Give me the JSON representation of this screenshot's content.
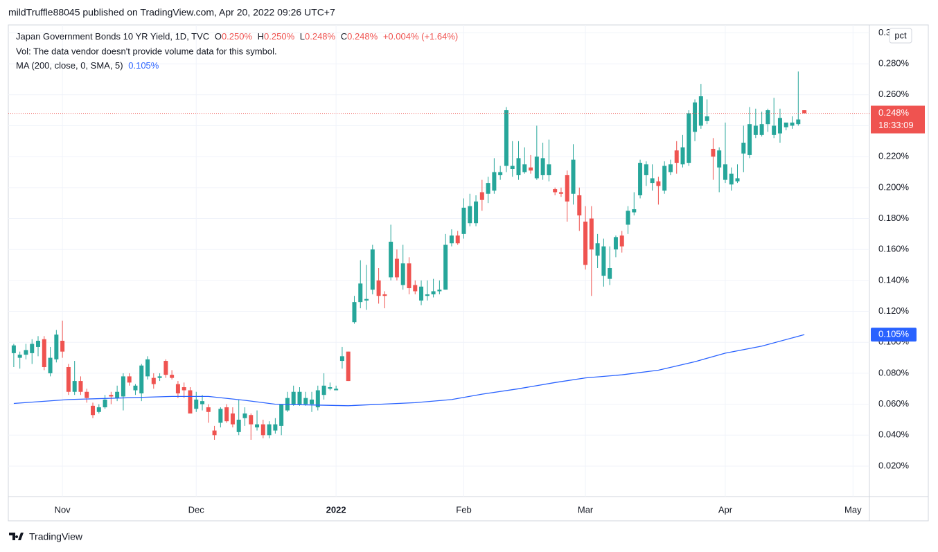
{
  "header": "mildTruffle88045 published on TradingView.com, Apr 20, 2022 09:26 UTC+7",
  "footer": "TradingView",
  "chart_data": {
    "type": "candlestick",
    "legend": {
      "symbol": "Japan Government Bonds 10 YR Yield, 1D, TVC",
      "o_label": "O",
      "o_value": "0.250%",
      "h_label": "H",
      "h_value": "0.250%",
      "l_label": "L",
      "l_value": "0.248%",
      "c_label": "C",
      "c_value": "0.248%",
      "change": "+0.004% (+1.64%)",
      "volume_note": "Vol: The data vendor doesn't provide volume data for this symbol."
    },
    "candles": {
      "up_color": "#26a69a",
      "down_color": "#ef5350",
      "open": [
        0.093,
        0.09,
        0.092,
        0.093,
        0.097,
        0.102,
        0.08,
        0.089,
        0.101,
        0.084,
        0.068,
        0.075,
        0.068,
        0.059,
        0.055,
        0.058,
        0.066,
        0.064,
        0.065,
        0.078,
        0.069,
        0.067,
        0.078,
        0.077,
        0.077,
        0.088,
        0.079,
        0.073,
        0.071,
        0.069,
        0.057,
        0.06,
        0.058,
        0.043,
        0.048,
        0.058,
        0.054,
        0.042,
        0.051,
        0.053,
        0.045,
        0.047,
        0.04,
        0.043,
        0.046,
        0.056,
        0.06,
        0.06,
        0.06,
        0.06,
        0.058,
        0.066,
        0.07,
        0.069,
        0.088,
        0.094,
        0.113,
        0.126,
        0.127,
        0.134,
        0.14,
        0.131,
        0.142,
        0.154,
        0.137,
        0.151,
        0.137,
        0.127,
        0.13,
        0.131,
        0.133,
        0.134,
        0.164,
        0.169,
        0.17,
        0.177,
        0.177,
        0.197,
        0.196,
        0.198,
        0.208,
        0.214,
        0.212,
        0.208,
        0.21,
        0.213,
        0.206,
        0.208,
        0.208,
        0.199,
        0.197,
        0.208,
        0.196,
        0.195,
        0.178,
        0.18,
        0.156,
        0.143,
        0.141,
        0.16,
        0.169,
        0.176,
        0.184,
        0.195,
        0.208,
        0.203,
        0.204,
        0.198,
        0.21,
        0.224,
        0.215,
        0.216,
        0.236,
        0.24,
        0.243,
        0.225,
        0.213,
        0.205,
        0.202,
        0.204,
        0.222,
        0.221,
        0.234,
        0.234,
        0.241,
        0.234,
        0.235,
        0.239,
        0.24,
        0.241,
        0.25
      ],
      "high": [
        0.099,
        0.094,
        0.099,
        0.102,
        0.104,
        0.104,
        0.097,
        0.108,
        0.114,
        0.086,
        0.088,
        0.078,
        0.07,
        0.061,
        0.06,
        0.066,
        0.068,
        0.072,
        0.08,
        0.08,
        0.073,
        0.086,
        0.091,
        0.08,
        0.08,
        0.089,
        0.082,
        0.075,
        0.074,
        0.071,
        0.068,
        0.066,
        0.06,
        0.046,
        0.058,
        0.06,
        0.058,
        0.063,
        0.058,
        0.054,
        0.056,
        0.05,
        0.049,
        0.051,
        0.06,
        0.068,
        0.072,
        0.071,
        0.068,
        0.068,
        0.072,
        0.08,
        0.074,
        0.072,
        0.097,
        0.094,
        0.13,
        0.153,
        0.15,
        0.163,
        0.148,
        0.133,
        0.176,
        0.16,
        0.163,
        0.155,
        0.14,
        0.14,
        0.14,
        0.141,
        0.14,
        0.17,
        0.173,
        0.172,
        0.193,
        0.196,
        0.195,
        0.205,
        0.207,
        0.219,
        0.214,
        0.252,
        0.23,
        0.23,
        0.226,
        0.221,
        0.24,
        0.229,
        0.231,
        0.2,
        0.2,
        0.211,
        0.228,
        0.2,
        0.188,
        0.188,
        0.17,
        0.167,
        0.162,
        0.169,
        0.172,
        0.188,
        0.197,
        0.218,
        0.217,
        0.215,
        0.207,
        0.217,
        0.218,
        0.23,
        0.234,
        0.25,
        0.257,
        0.267,
        0.257,
        0.232,
        0.226,
        0.242,
        0.213,
        0.215,
        0.24,
        0.252,
        0.251,
        0.249,
        0.251,
        0.258,
        0.251,
        0.242,
        0.246,
        0.275,
        0.25
      ],
      "low": [
        0.084,
        0.083,
        0.089,
        0.086,
        0.091,
        0.082,
        0.078,
        0.087,
        0.09,
        0.066,
        0.066,
        0.066,
        0.061,
        0.051,
        0.054,
        0.057,
        0.06,
        0.062,
        0.056,
        0.072,
        0.066,
        0.062,
        0.076,
        0.07,
        0.075,
        0.077,
        0.076,
        0.064,
        0.064,
        0.054,
        0.055,
        0.056,
        0.048,
        0.037,
        0.045,
        0.048,
        0.045,
        0.04,
        0.046,
        0.037,
        0.043,
        0.038,
        0.038,
        0.041,
        0.04,
        0.055,
        0.059,
        0.059,
        0.059,
        0.055,
        0.056,
        0.063,
        0.069,
        0.069,
        0.083,
        0.075,
        0.112,
        0.122,
        0.121,
        0.131,
        0.125,
        0.122,
        0.14,
        0.14,
        0.134,
        0.131,
        0.131,
        0.124,
        0.127,
        0.129,
        0.131,
        0.134,
        0.162,
        0.163,
        0.167,
        0.175,
        0.175,
        0.185,
        0.19,
        0.196,
        0.205,
        0.21,
        0.207,
        0.205,
        0.209,
        0.209,
        0.205,
        0.205,
        0.204,
        0.195,
        0.194,
        0.178,
        0.189,
        0.172,
        0.147,
        0.13,
        0.148,
        0.136,
        0.137,
        0.155,
        0.158,
        0.17,
        0.182,
        0.193,
        0.201,
        0.198,
        0.189,
        0.196,
        0.208,
        0.209,
        0.213,
        0.214,
        0.23,
        0.238,
        0.241,
        0.205,
        0.197,
        0.203,
        0.198,
        0.203,
        0.21,
        0.219,
        0.232,
        0.233,
        0.236,
        0.232,
        0.229,
        0.237,
        0.238,
        0.24,
        0.248
      ],
      "close": [
        0.098,
        0.092,
        0.095,
        0.099,
        0.101,
        0.084,
        0.09,
        0.105,
        0.094,
        0.068,
        0.075,
        0.068,
        0.064,
        0.053,
        0.058,
        0.063,
        0.065,
        0.068,
        0.078,
        0.074,
        0.072,
        0.085,
        0.089,
        0.073,
        0.078,
        0.079,
        0.077,
        0.067,
        0.069,
        0.054,
        0.063,
        0.062,
        0.055,
        0.04,
        0.057,
        0.049,
        0.047,
        0.05,
        0.054,
        0.047,
        0.047,
        0.04,
        0.047,
        0.047,
        0.06,
        0.064,
        0.068,
        0.068,
        0.064,
        0.063,
        0.069,
        0.072,
        0.071,
        0.07,
        0.091,
        0.075,
        0.126,
        0.138,
        0.128,
        0.16,
        0.13,
        0.13,
        0.165,
        0.142,
        0.151,
        0.135,
        0.133,
        0.136,
        0.131,
        0.133,
        0.134,
        0.163,
        0.169,
        0.164,
        0.187,
        0.188,
        0.191,
        0.192,
        0.203,
        0.21,
        0.21,
        0.25,
        0.214,
        0.219,
        0.215,
        0.211,
        0.22,
        0.219,
        0.215,
        0.197,
        0.196,
        0.191,
        0.218,
        0.182,
        0.15,
        0.16,
        0.164,
        0.162,
        0.148,
        0.168,
        0.162,
        0.185,
        0.186,
        0.216,
        0.215,
        0.206,
        0.201,
        0.214,
        0.215,
        0.216,
        0.226,
        0.248,
        0.255,
        0.259,
        0.246,
        0.22,
        0.224,
        0.215,
        0.209,
        0.206,
        0.229,
        0.241,
        0.24,
        0.241,
        0.25,
        0.24,
        0.245,
        0.242,
        0.242,
        0.244,
        0.248
      ]
    },
    "ma": {
      "name": "MA (200, close, 0, SMA, 5)",
      "value_label": "0.105%",
      "color": "#2962ff",
      "x": [
        0,
        9,
        26,
        32,
        38,
        43,
        55,
        66,
        72,
        77,
        83,
        89,
        94,
        100,
        106,
        112,
        117,
        123,
        130
      ],
      "values": [
        0.0605,
        0.063,
        0.065,
        0.065,
        0.0625,
        0.06,
        0.059,
        0.061,
        0.063,
        0.0665,
        0.07,
        0.074,
        0.077,
        0.079,
        0.082,
        0.0875,
        0.093,
        0.0975,
        0.105
      ]
    },
    "last_price_label": "0.248%",
    "countdown": "18:33:09",
    "scale_button": "pct",
    "xlim": [
      -0.9,
      140.7
    ],
    "xticks": [
      {
        "value": 8,
        "label": "Nov"
      },
      {
        "value": 30,
        "label": "Dec"
      },
      {
        "value": 53,
        "label": "2022",
        "bold": true
      },
      {
        "value": 74,
        "label": "Feb"
      },
      {
        "value": 94,
        "label": "Mar"
      },
      {
        "value": 117,
        "label": "Apr"
      },
      {
        "value": 138,
        "label": "May"
      }
    ],
    "ylim": [
      0.0003,
      0.3051
    ],
    "yticks": [
      {
        "value": 0.02,
        "label": "0.020%"
      },
      {
        "value": 0.04,
        "label": "0.040%"
      },
      {
        "value": 0.06,
        "label": "0.060%"
      },
      {
        "value": 0.08,
        "label": "0.080%"
      },
      {
        "value": 0.1,
        "label": "0.100%"
      },
      {
        "value": 0.12,
        "label": "0.120%"
      },
      {
        "value": 0.14,
        "label": "0.140%"
      },
      {
        "value": 0.16,
        "label": "0.160%"
      },
      {
        "value": 0.18,
        "label": "0.180%"
      },
      {
        "value": 0.2,
        "label": "0.200%"
      },
      {
        "value": 0.22,
        "label": "0.220%"
      },
      {
        "value": 0.24,
        "label": "0.240%"
      },
      {
        "value": 0.26,
        "label": "0.260%"
      },
      {
        "value": 0.28,
        "label": "0.280%"
      },
      {
        "value": 0.3,
        "label": "0.300%"
      }
    ],
    "grid": true
  }
}
